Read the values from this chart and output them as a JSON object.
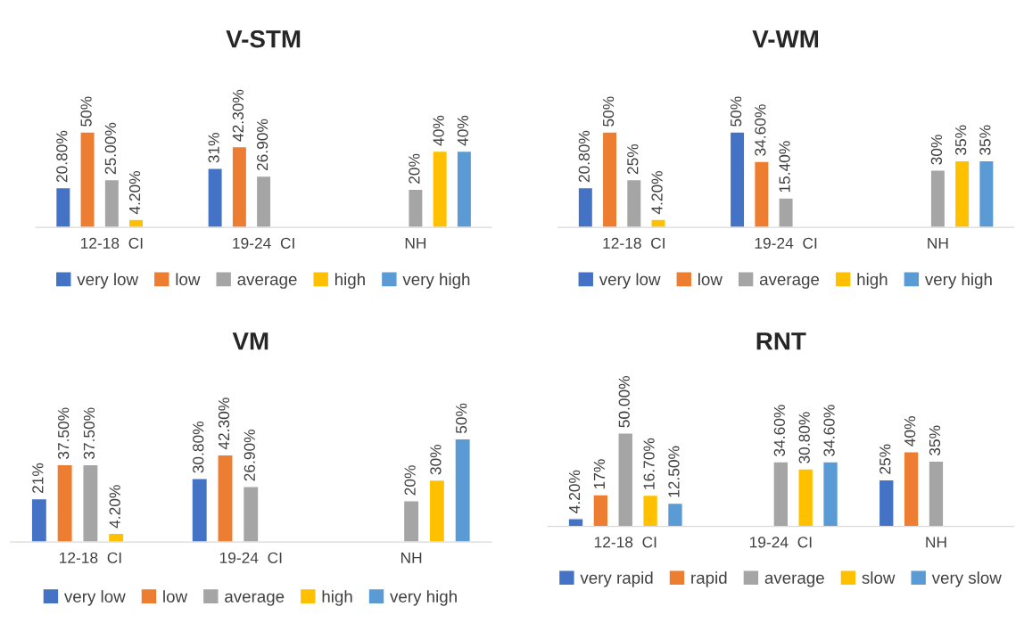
{
  "chart_data": [
    {
      "type": "bar",
      "title": "V-STM",
      "categories": [
        "12-18  CI",
        "19-24  CI",
        "NH"
      ],
      "tick_labels": "x",
      "legend": "bottom",
      "series": [
        {
          "name": "very low",
          "color": "#4472c4",
          "values": [
            20.8,
            31,
            null
          ],
          "value_labels": [
            "20.80%",
            "31%",
            null
          ]
        },
        {
          "name": "low",
          "color": "#ed7d31",
          "values": [
            50,
            42.3,
            null
          ],
          "value_labels": [
            "50%",
            "42.30%",
            null
          ]
        },
        {
          "name": "average",
          "color": "#a5a5a5",
          "values": [
            25,
            26.9,
            20
          ],
          "value_labels": [
            "25.00%",
            "26.90%",
            "20%"
          ]
        },
        {
          "name": "high",
          "color": "#ffc000",
          "values": [
            4.2,
            null,
            40
          ],
          "value_labels": [
            "4.20%",
            null,
            "40%"
          ]
        },
        {
          "name": "very high",
          "color": "#5b9bd5",
          "values": [
            null,
            null,
            40
          ],
          "value_labels": [
            null,
            null,
            "40%"
          ]
        }
      ]
    },
    {
      "type": "bar",
      "title": "V-WM",
      "categories": [
        "12-18  CI",
        "19-24  CI",
        "NH"
      ],
      "tick_labels": "x",
      "legend": "bottom",
      "series": [
        {
          "name": "very low",
          "color": "#4472c4",
          "values": [
            20.8,
            50,
            null
          ],
          "value_labels": [
            "20.80%",
            "50%",
            null
          ]
        },
        {
          "name": "low",
          "color": "#ed7d31",
          "values": [
            50,
            34.6,
            null
          ],
          "value_labels": [
            "50%",
            "34.60%",
            null
          ]
        },
        {
          "name": "average",
          "color": "#a5a5a5",
          "values": [
            25,
            15.4,
            30
          ],
          "value_labels": [
            "25%",
            "15.40%",
            "30%"
          ]
        },
        {
          "name": "high",
          "color": "#ffc000",
          "values": [
            4.2,
            null,
            35
          ],
          "value_labels": [
            "4.20%",
            null,
            "35%"
          ]
        },
        {
          "name": "very high",
          "color": "#5b9bd5",
          "values": [
            null,
            null,
            35
          ],
          "value_labels": [
            null,
            null,
            "35%"
          ]
        }
      ]
    },
    {
      "type": "bar",
      "title": "VM",
      "categories": [
        "12-18  CI",
        "19-24  CI",
        "NH"
      ],
      "tick_labels": "x",
      "legend": "bottom",
      "series": [
        {
          "name": "very low",
          "color": "#4472c4",
          "values": [
            21,
            30.8,
            null
          ],
          "value_labels": [
            "21%",
            "30.80%",
            null
          ]
        },
        {
          "name": "low",
          "color": "#ed7d31",
          "values": [
            37.5,
            42.3,
            null
          ],
          "value_labels": [
            "37.50%",
            "42.30%",
            null
          ]
        },
        {
          "name": "average",
          "color": "#a5a5a5",
          "values": [
            37.5,
            26.9,
            20
          ],
          "value_labels": [
            "37.50%",
            "26.90%",
            "20%"
          ]
        },
        {
          "name": "high",
          "color": "#ffc000",
          "values": [
            4.2,
            null,
            30
          ],
          "value_labels": [
            "4.20%",
            null,
            "30%"
          ]
        },
        {
          "name": "very high",
          "color": "#5b9bd5",
          "values": [
            null,
            null,
            50
          ],
          "value_labels": [
            null,
            null,
            "50%"
          ]
        }
      ]
    },
    {
      "type": "bar",
      "title": "RNT",
      "categories": [
        "12-18  CI",
        "19-24  CI",
        "NH"
      ],
      "tick_labels": "x",
      "legend": "bottom",
      "series": [
        {
          "name": "very rapid",
          "color": "#4472c4",
          "values": [
            4.2,
            null,
            25
          ],
          "value_labels": [
            "4.20%",
            null,
            "25%"
          ]
        },
        {
          "name": "rapid",
          "color": "#ed7d31",
          "values": [
            17,
            null,
            40
          ],
          "value_labels": [
            "17%",
            null,
            "40%"
          ]
        },
        {
          "name": "average",
          "color": "#a5a5a5",
          "values": [
            50,
            34.6,
            35
          ],
          "value_labels": [
            "50.00%",
            "34.60%",
            "35%"
          ]
        },
        {
          "name": "slow",
          "color": "#ffc000",
          "values": [
            16.7,
            30.8,
            null
          ],
          "value_labels": [
            "16.70%",
            "30.80%",
            null
          ]
        },
        {
          "name": "very slow",
          "color": "#5b9bd5",
          "values": [
            12.5,
            34.6,
            null
          ],
          "value_labels": [
            "12.50%",
            "34.60%",
            null
          ]
        }
      ]
    }
  ]
}
